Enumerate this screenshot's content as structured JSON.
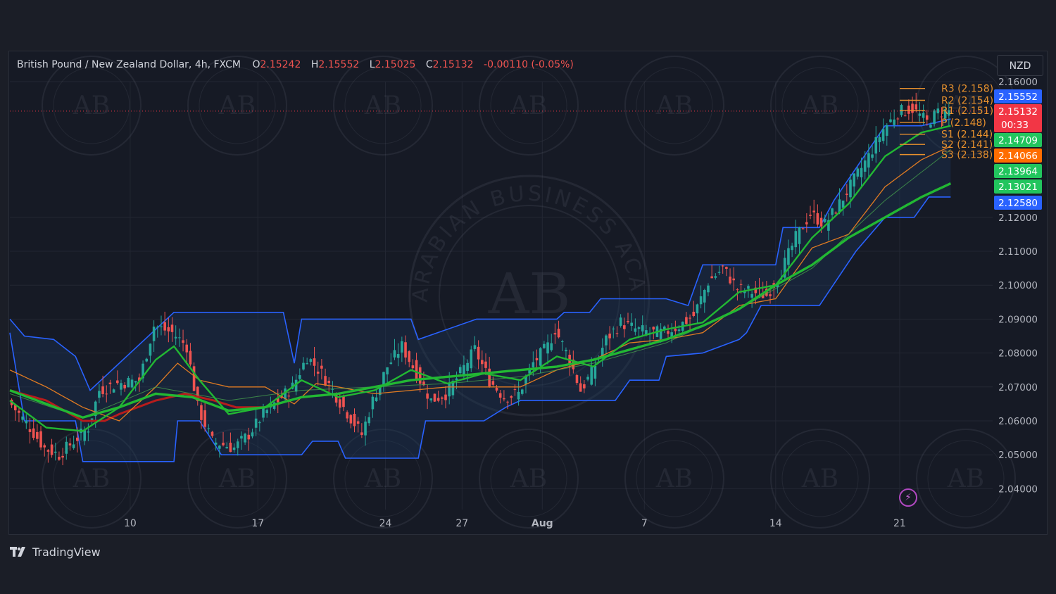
{
  "legend": {
    "symbol": "British Pound / New Zealand Dollar, 4h, FXCM",
    "open_label": "O",
    "open": "2.15242",
    "high_label": "H",
    "high": "2.15552",
    "low_label": "L",
    "low": "2.15025",
    "close_label": "C",
    "close": "2.15132",
    "change": "-0.00110 (-0.05%)"
  },
  "currency": "NZD",
  "brand": "TradingView",
  "watermark": {
    "large_text": "ARABIAN BUSINESS ACADEMY",
    "monogram": "AB"
  },
  "price_labels": [
    {
      "value": "2.15552",
      "color": "#2962ff"
    },
    {
      "value": "2.15132",
      "color": "#f23645",
      "sub": "00:33"
    },
    {
      "value": "2.14709",
      "color": "#22c55e"
    },
    {
      "value": "2.14066",
      "color": "#ff6d00"
    },
    {
      "value": "2.13964",
      "color": "#22c55e"
    },
    {
      "value": "2.13021",
      "color": "#22c55e"
    },
    {
      "value": "2.12580",
      "color": "#2962ff"
    }
  ],
  "pivots": [
    {
      "label": "R3 (2.158)",
      "value": 2.158
    },
    {
      "label": "R2 (2.154)",
      "value": 2.1545
    },
    {
      "label": "R1 (2.151)",
      "value": 2.1515
    },
    {
      "label": "P (2.148)",
      "value": 2.148
    },
    {
      "label": "S1 (2.144)",
      "value": 2.1445
    },
    {
      "label": "S2 (2.141)",
      "value": 2.1415
    },
    {
      "label": "S3 (2.138)",
      "value": 2.1385
    }
  ],
  "chart_data": {
    "type": "candlestick",
    "y_ticks": [
      "2.16000",
      "2.12000",
      "2.11000",
      "2.10000",
      "2.09000",
      "2.08000",
      "2.07000",
      "2.06000",
      "2.05000",
      "2.04000"
    ],
    "ylim": [
      2.034,
      2.161
    ],
    "x_ticks": [
      "10",
      "17",
      "24",
      "27",
      "Aug",
      "7",
      "14",
      "21"
    ],
    "last_price": 2.15132,
    "colors": {
      "up": "#26a69a",
      "down": "#ef5350",
      "channel": "#2962ff",
      "ma_green": "#22b833",
      "ma_orange": "#e07b22",
      "ma_red": "#b71c1c"
    },
    "close_path": [
      [
        0,
        2.066
      ],
      [
        6,
        2.058
      ],
      [
        10,
        2.052
      ],
      [
        14,
        2.05
      ],
      [
        18,
        2.054
      ],
      [
        22,
        2.058
      ],
      [
        25,
        2.069
      ],
      [
        30,
        2.071
      ],
      [
        36,
        2.072
      ],
      [
        40,
        2.088
      ],
      [
        45,
        2.086
      ],
      [
        49,
        2.082
      ],
      [
        52,
        2.064
      ],
      [
        56,
        2.054
      ],
      [
        62,
        2.052
      ],
      [
        66,
        2.056
      ],
      [
        70,
        2.062
      ],
      [
        74,
        2.066
      ],
      [
        78,
        2.07
      ],
      [
        82,
        2.079
      ],
      [
        86,
        2.074
      ],
      [
        92,
        2.064
      ],
      [
        97,
        2.056
      ],
      [
        100,
        2.066
      ],
      [
        104,
        2.076
      ],
      [
        108,
        2.082
      ],
      [
        112,
        2.074
      ],
      [
        116,
        2.066
      ],
      [
        120,
        2.068
      ],
      [
        124,
        2.074
      ],
      [
        128,
        2.081
      ],
      [
        132,
        2.072
      ],
      [
        136,
        2.067
      ],
      [
        140,
        2.068
      ],
      [
        144,
        2.077
      ],
      [
        148,
        2.082
      ],
      [
        150,
        2.087
      ],
      [
        154,
        2.078
      ],
      [
        157,
        2.069
      ],
      [
        160,
        2.074
      ],
      [
        164,
        2.084
      ],
      [
        168,
        2.089
      ],
      [
        172,
        2.087
      ],
      [
        176,
        2.086
      ],
      [
        180,
        2.086
      ],
      [
        184,
        2.088
      ],
      [
        188,
        2.091
      ],
      [
        192,
        2.101
      ],
      [
        196,
        2.105
      ],
      [
        200,
        2.099
      ],
      [
        204,
        2.098
      ],
      [
        208,
        2.097
      ],
      [
        212,
        2.104
      ],
      [
        216,
        2.114
      ],
      [
        220,
        2.121
      ],
      [
        224,
        2.118
      ],
      [
        228,
        2.124
      ],
      [
        232,
        2.131
      ],
      [
        236,
        2.138
      ],
      [
        240,
        2.146
      ],
      [
        244,
        2.151
      ],
      [
        248,
        2.152
      ],
      [
        252,
        2.148
      ],
      [
        255,
        2.151
      ],
      [
        258,
        2.1513
      ]
    ],
    "ma_green_thick": [
      [
        0,
        2.069
      ],
      [
        10,
        2.065
      ],
      [
        20,
        2.061
      ],
      [
        30,
        2.064
      ],
      [
        40,
        2.068
      ],
      [
        50,
        2.067
      ],
      [
        60,
        2.063
      ],
      [
        70,
        2.064
      ],
      [
        80,
        2.067
      ],
      [
        90,
        2.068
      ],
      [
        100,
        2.07
      ],
      [
        110,
        2.072
      ],
      [
        120,
        2.073
      ],
      [
        130,
        2.074
      ],
      [
        140,
        2.075
      ],
      [
        150,
        2.076
      ],
      [
        160,
        2.078
      ],
      [
        170,
        2.081
      ],
      [
        180,
        2.084
      ],
      [
        190,
        2.088
      ],
      [
        200,
        2.093
      ],
      [
        210,
        2.1
      ],
      [
        220,
        2.106
      ],
      [
        230,
        2.114
      ],
      [
        240,
        2.12
      ],
      [
        250,
        2.126
      ],
      [
        258,
        2.13
      ]
    ],
    "ma_green_fast": [
      [
        0,
        2.066
      ],
      [
        10,
        2.058
      ],
      [
        20,
        2.057
      ],
      [
        30,
        2.064
      ],
      [
        40,
        2.078
      ],
      [
        45,
        2.082
      ],
      [
        52,
        2.072
      ],
      [
        60,
        2.062
      ],
      [
        70,
        2.064
      ],
      [
        80,
        2.072
      ],
      [
        90,
        2.067
      ],
      [
        100,
        2.069
      ],
      [
        110,
        2.075
      ],
      [
        120,
        2.071
      ],
      [
        130,
        2.074
      ],
      [
        140,
        2.072
      ],
      [
        150,
        2.079
      ],
      [
        160,
        2.076
      ],
      [
        170,
        2.084
      ],
      [
        180,
        2.087
      ],
      [
        190,
        2.089
      ],
      [
        200,
        2.098
      ],
      [
        210,
        2.1
      ],
      [
        220,
        2.114
      ],
      [
        230,
        2.124
      ],
      [
        240,
        2.138
      ],
      [
        250,
        2.145
      ],
      [
        258,
        2.147
      ]
    ],
    "ma_orange": [
      [
        0,
        2.075
      ],
      [
        10,
        2.07
      ],
      [
        20,
        2.064
      ],
      [
        30,
        2.06
      ],
      [
        40,
        2.07
      ],
      [
        46,
        2.077
      ],
      [
        52,
        2.072
      ],
      [
        60,
        2.07
      ],
      [
        70,
        2.07
      ],
      [
        78,
        2.065
      ],
      [
        84,
        2.071
      ],
      [
        90,
        2.07
      ],
      [
        100,
        2.068
      ],
      [
        110,
        2.069
      ],
      [
        120,
        2.07
      ],
      [
        130,
        2.07
      ],
      [
        140,
        2.07
      ],
      [
        150,
        2.075
      ],
      [
        160,
        2.078
      ],
      [
        170,
        2.083
      ],
      [
        180,
        2.084
      ],
      [
        190,
        2.086
      ],
      [
        200,
        2.094
      ],
      [
        210,
        2.096
      ],
      [
        220,
        2.111
      ],
      [
        230,
        2.115
      ],
      [
        240,
        2.129
      ],
      [
        250,
        2.137
      ],
      [
        258,
        2.141
      ]
    ],
    "ma_green_thin": [
      [
        0,
        2.068
      ],
      [
        20,
        2.061
      ],
      [
        40,
        2.07
      ],
      [
        60,
        2.066
      ],
      [
        80,
        2.069
      ],
      [
        100,
        2.07
      ],
      [
        120,
        2.071
      ],
      [
        140,
        2.073
      ],
      [
        160,
        2.077
      ],
      [
        180,
        2.083
      ],
      [
        200,
        2.093
      ],
      [
        220,
        2.105
      ],
      [
        240,
        2.125
      ],
      [
        258,
        2.14
      ]
    ],
    "ma_red": [
      [
        0,
        2.069
      ],
      [
        10,
        2.066
      ],
      [
        20,
        2.06
      ],
      [
        26,
        2.06
      ],
      [
        30,
        2.062
      ],
      [
        40,
        2.066
      ],
      [
        48,
        2.068
      ],
      [
        56,
        2.066
      ],
      [
        62,
        2.064
      ],
      [
        70,
        2.064
      ]
    ],
    "channel_upper": [
      [
        0,
        2.09
      ],
      [
        4,
        2.085
      ],
      [
        12,
        2.084
      ],
      [
        18,
        2.079
      ],
      [
        22,
        2.069
      ],
      [
        45,
        2.092
      ],
      [
        75,
        2.092
      ],
      [
        78,
        2.077
      ],
      [
        80,
        2.09
      ],
      [
        110,
        2.09
      ],
      [
        112,
        2.084
      ],
      [
        128,
        2.09
      ],
      [
        150,
        2.09
      ],
      [
        152,
        2.092
      ],
      [
        159,
        2.092
      ],
      [
        162,
        2.096
      ],
      [
        180,
        2.096
      ],
      [
        186,
        2.094
      ],
      [
        190,
        2.106
      ],
      [
        205,
        2.106
      ],
      [
        210,
        2.106
      ],
      [
        212,
        2.117
      ],
      [
        222,
        2.117
      ],
      [
        226,
        2.125
      ],
      [
        240,
        2.147
      ],
      [
        250,
        2.147
      ],
      [
        258,
        2.149
      ]
    ],
    "channel_lower": [
      [
        0,
        2.086
      ],
      [
        4,
        2.06
      ],
      [
        18,
        2.06
      ],
      [
        20,
        2.048
      ],
      [
        45,
        2.048
      ],
      [
        46,
        2.06
      ],
      [
        52,
        2.06
      ],
      [
        58,
        2.05
      ],
      [
        80,
        2.05
      ],
      [
        83,
        2.054
      ],
      [
        90,
        2.054
      ],
      [
        92,
        2.049
      ],
      [
        112,
        2.049
      ],
      [
        114,
        2.06
      ],
      [
        130,
        2.06
      ],
      [
        136,
        2.064
      ],
      [
        140,
        2.066
      ],
      [
        166,
        2.066
      ],
      [
        170,
        2.072
      ],
      [
        178,
        2.072
      ],
      [
        180,
        2.079
      ],
      [
        190,
        2.08
      ],
      [
        200,
        2.084
      ],
      [
        202,
        2.086
      ],
      [
        206,
        2.094
      ],
      [
        222,
        2.094
      ],
      [
        232,
        2.11
      ],
      [
        240,
        2.12
      ],
      [
        248,
        2.12
      ],
      [
        252,
        2.126
      ],
      [
        258,
        2.126
      ]
    ]
  }
}
